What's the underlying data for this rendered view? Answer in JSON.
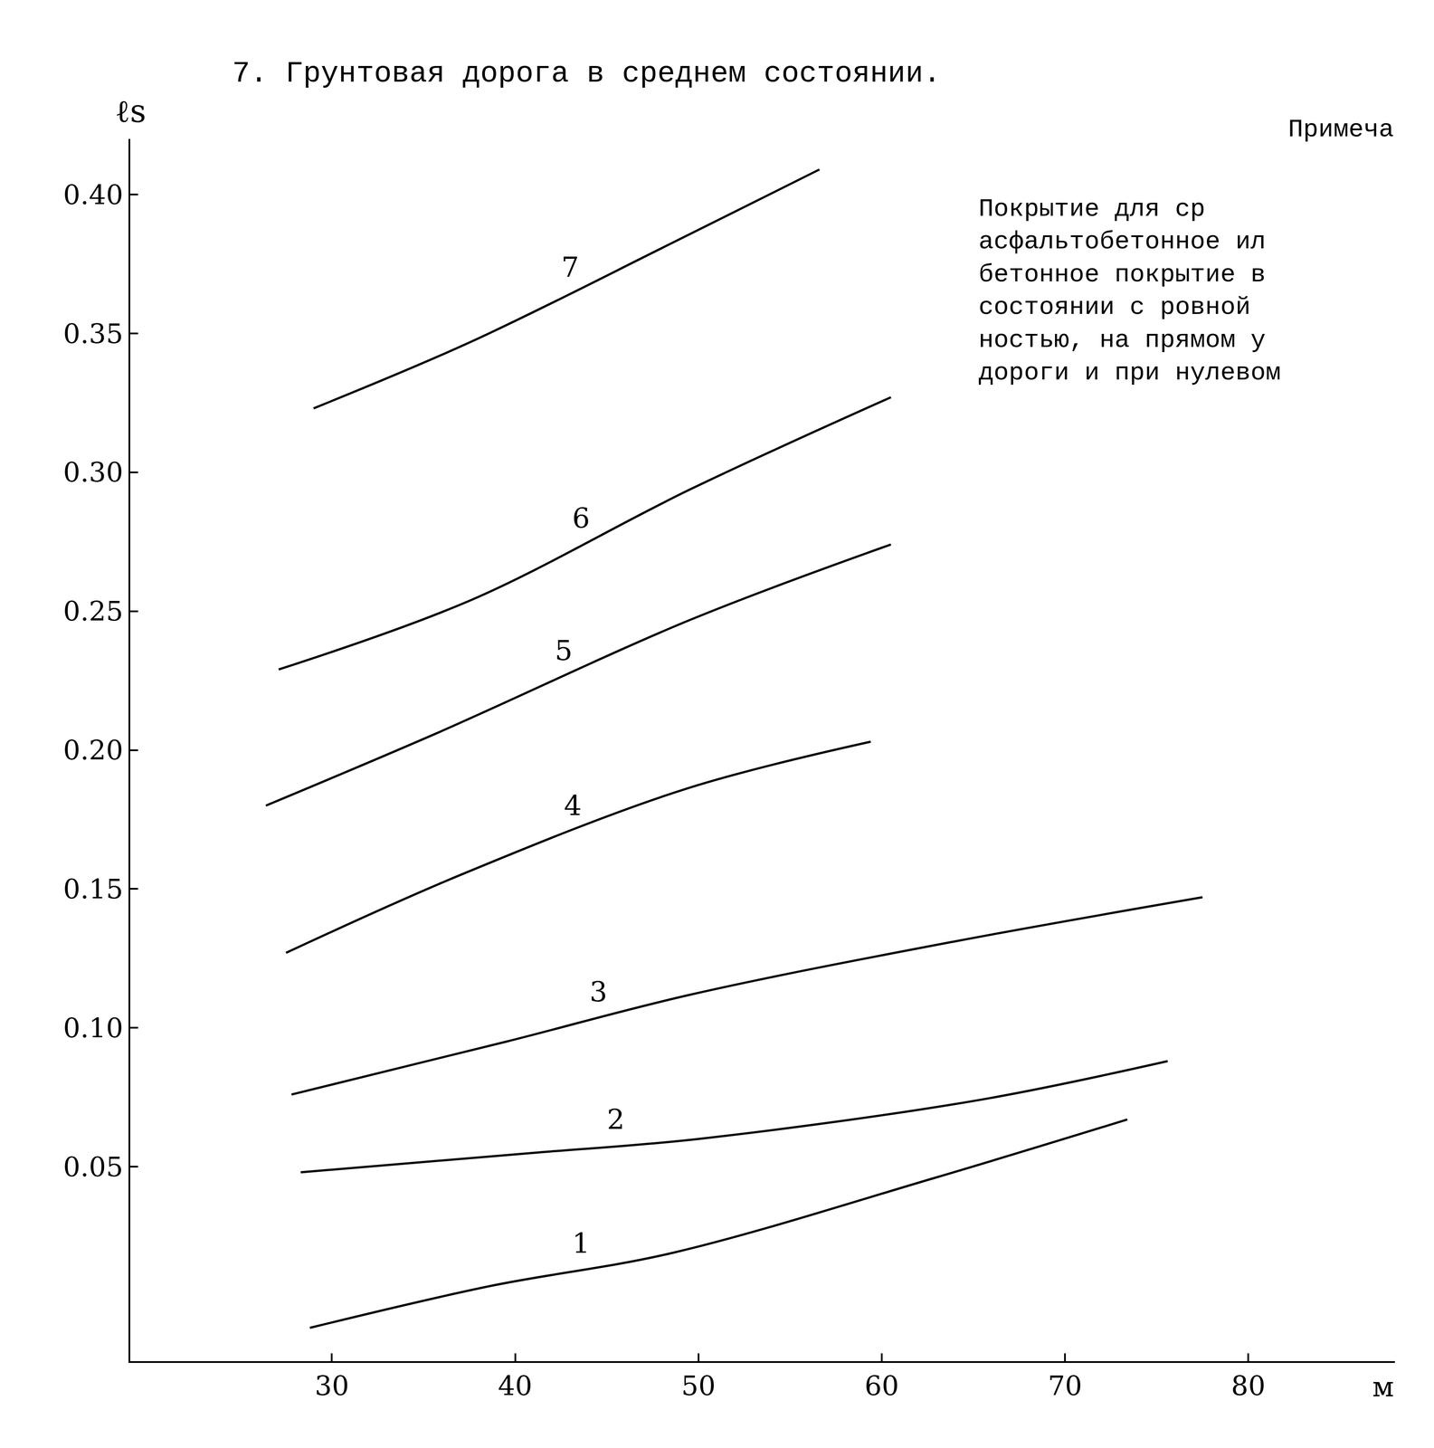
{
  "chart_data": {
    "type": "line",
    "title": "7. Грунтовая дорога в среднем состоянии.",
    "y_label": "ℓs",
    "x_label": "м",
    "annotations": [
      "Примеча",
      "Покрытие для ср",
      "асфальтобетонное ил",
      "бетонное покрытие в",
      "состоянии с ровной",
      "ностью, на прямом у",
      "дороги и при нулевом"
    ],
    "xlim": [
      19,
      88
    ],
    "xticks": [
      30,
      40,
      50,
      60,
      70,
      80
    ],
    "ylim": [
      -0.02,
      0.42
    ],
    "yticks": [
      0.05,
      {
        "value": 0.1,
        "label": "0.10"
      },
      0.15,
      {
        "value": 0.2,
        "label": "0.20"
      },
      0.25,
      {
        "value": 0.3,
        "label": "0.30"
      },
      0.35,
      {
        "value": 0.4,
        "label": "0.40"
      }
    ],
    "grid": false,
    "color": "#000000",
    "line_style": "solid",
    "series": [
      {
        "name": "1",
        "x": [
          28.8,
          38.6,
          48.6,
          62.9,
          73.4
        ],
        "values": [
          -0.008,
          0.007,
          0.019,
          0.046,
          0.067
        ]
      },
      {
        "name": "2",
        "x": [
          28.3,
          41.0,
          50.0,
          65.3,
          75.6
        ],
        "values": [
          0.048,
          0.055,
          0.06,
          0.074,
          0.088
        ]
      },
      {
        "name": "3",
        "x": [
          27.8,
          39.5,
          49.6,
          63.9,
          77.5
        ],
        "values": [
          0.076,
          0.095,
          0.112,
          0.131,
          0.147
        ]
      },
      {
        "name": "4",
        "x": [
          27.5,
          37.0,
          49.3,
          59.4
        ],
        "values": [
          0.127,
          0.155,
          0.186,
          0.203
        ]
      },
      {
        "name": "5",
        "x": [
          26.4,
          35.7,
          49.6,
          60.5
        ],
        "values": [
          0.18,
          0.206,
          0.247,
          0.274
        ]
      },
      {
        "name": "6",
        "x": [
          27.1,
          37.6,
          49.6,
          60.5
        ],
        "values": [
          0.229,
          0.254,
          0.294,
          0.327
        ]
      },
      {
        "name": "7",
        "x": [
          29.0,
          37.6,
          48.4,
          56.6
        ],
        "values": [
          0.323,
          0.347,
          0.382,
          0.409
        ]
      }
    ]
  }
}
